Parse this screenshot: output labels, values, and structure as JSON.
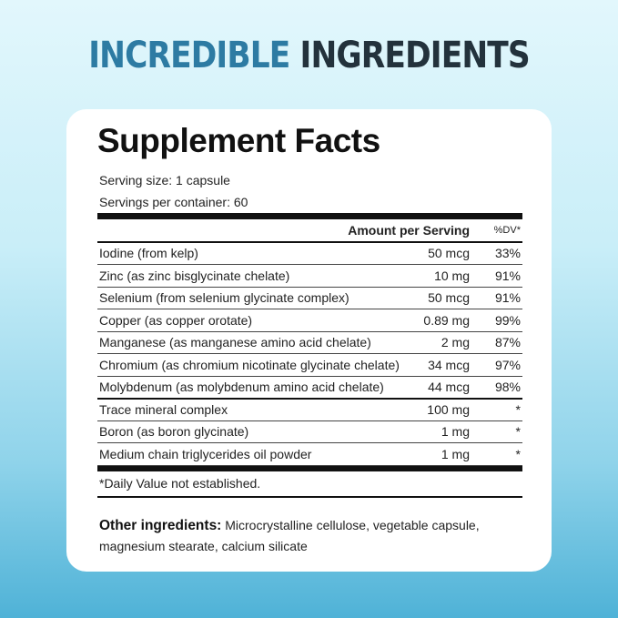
{
  "headline": {
    "part1": "INCREDIBLE",
    "part2": "INGREDIENTS"
  },
  "panel": {
    "title": "Supplement Facts",
    "serving_size": "Serving size: 1 capsule",
    "servings_per_container": "Servings per container: 60",
    "header": {
      "amount": "Amount per Serving",
      "dv": "%DV*"
    },
    "rows": [
      {
        "name": "Iodine (from kelp)",
        "amount": "50 mcg",
        "dv": "33%"
      },
      {
        "name": "Zinc (as zinc bisglycinate chelate)",
        "amount": "10 mg",
        "dv": "91%"
      },
      {
        "name": "Selenium (from selenium glycinate complex)",
        "amount": "50 mcg",
        "dv": "91%"
      },
      {
        "name": "Copper (as copper orotate)",
        "amount": "0.89 mg",
        "dv": "99%"
      },
      {
        "name": "Manganese (as manganese amino acid chelate)",
        "amount": "2 mg",
        "dv": "87%"
      },
      {
        "name": "Chromium (as chromium nicotinate glycinate chelate)",
        "amount": "34 mcg",
        "dv": "97%"
      },
      {
        "name": "Molybdenum (as molybdenum amino acid chelate)",
        "amount": "44 mcg",
        "dv": "98%"
      },
      {
        "name": "Trace mineral complex",
        "amount": "100 mg",
        "dv": "*"
      },
      {
        "name": "Boron (as boron glycinate)",
        "amount": "1 mg",
        "dv": "*"
      },
      {
        "name": "Medium chain triglycerides oil powder",
        "amount": "1 mg",
        "dv": "*"
      }
    ],
    "footnote": "*Daily Value not established.",
    "other_label": "Other ingredients:",
    "other_text": " Microcrystalline cellulose, vegetable capsule, magnesium stearate, calcium silicate"
  }
}
